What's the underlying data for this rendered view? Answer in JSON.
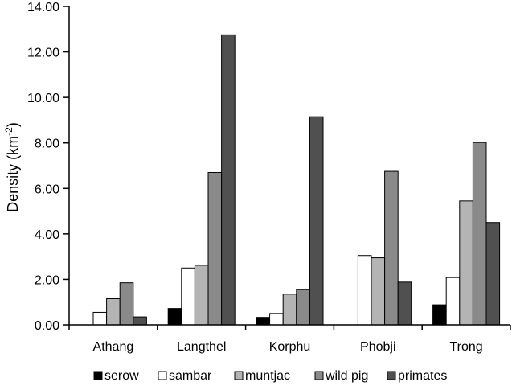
{
  "chart_data": {
    "type": "bar",
    "title": "",
    "xlabel": "",
    "ylabel": "Density (km",
    "ylabel_sup": "-2",
    "ylabel_close": ")",
    "ylim": [
      0,
      14
    ],
    "yticks": [
      "0.00",
      "2.00",
      "4.00",
      "6.00",
      "8.00",
      "10.00",
      "12.00",
      "14.00"
    ],
    "ytick_values": [
      0,
      2,
      4,
      6,
      8,
      10,
      12,
      14
    ],
    "grid": false,
    "legend_position": "bottom",
    "categories": [
      "Athang",
      "Langthel",
      "Korphu",
      "Phobji",
      "Trong"
    ],
    "series": [
      {
        "name": "serow",
        "color": "#000000",
        "values": [
          0.0,
          0.72,
          0.33,
          0.0,
          0.88
        ]
      },
      {
        "name": "sambar",
        "color": "#ffffff",
        "values": [
          0.55,
          2.5,
          0.5,
          3.05,
          2.08
        ]
      },
      {
        "name": "muntjac",
        "color": "#b4b4b4",
        "values": [
          1.15,
          2.62,
          1.35,
          2.95,
          5.45
        ]
      },
      {
        "name": "wild pig",
        "color": "#8a8a8a",
        "values": [
          1.85,
          6.7,
          1.55,
          6.75,
          8.02
        ]
      },
      {
        "name": "primates",
        "color": "#505050",
        "values": [
          0.35,
          12.75,
          9.15,
          1.88,
          4.5
        ]
      }
    ]
  }
}
